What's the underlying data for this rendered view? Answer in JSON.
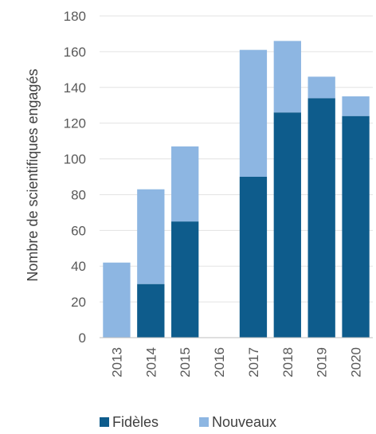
{
  "chart_data": {
    "type": "bar",
    "stacked": true,
    "categories": [
      "2013",
      "2014",
      "2015",
      "2016",
      "2017",
      "2018",
      "2019",
      "2020"
    ],
    "series": [
      {
        "name": "Fidèles",
        "values": [
          0,
          30,
          65,
          0,
          90,
          126,
          134,
          124
        ],
        "color": "#0E5C8C"
      },
      {
        "name": "Nouveaux",
        "values": [
          42,
          53,
          42,
          0,
          71,
          40,
          12,
          11
        ],
        "color": "#8DB6E2"
      }
    ],
    "title": "",
    "xlabel": "",
    "ylabel": "Nombre de scientifiques engagés",
    "ylim": [
      0,
      180
    ],
    "yticks": [
      0,
      20,
      40,
      60,
      80,
      100,
      120,
      140,
      160,
      180
    ],
    "grid": true,
    "legend": "bottom"
  }
}
